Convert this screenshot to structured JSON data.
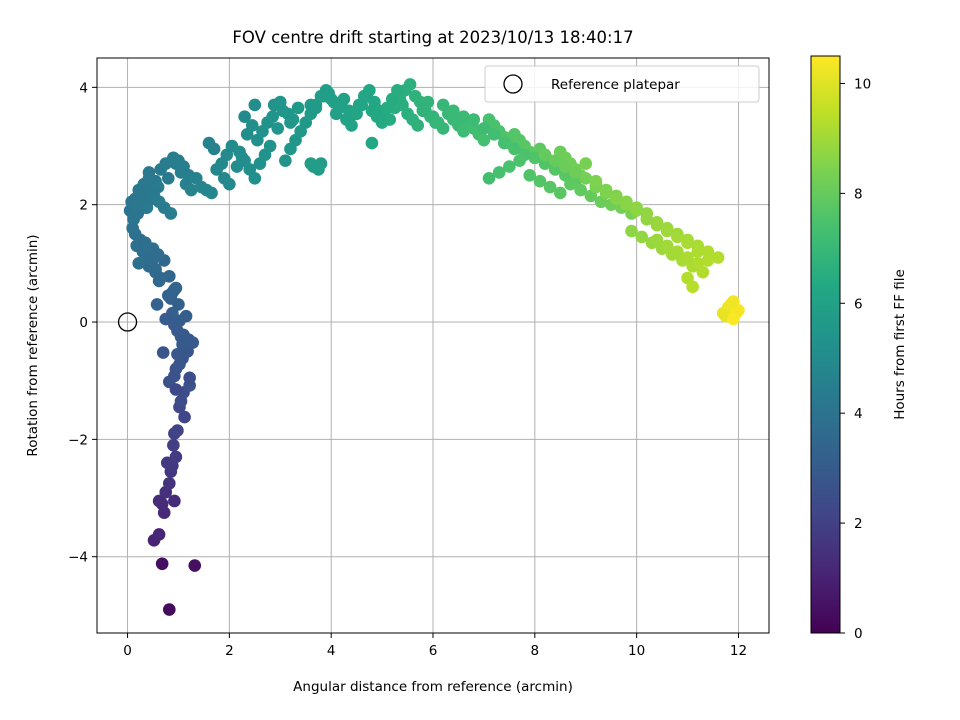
{
  "chart_data": {
    "type": "scatter",
    "title": "FOV centre drift starting at 2023/10/13 18:40:17",
    "xlabel": "Angular distance from reference (arcmin)",
    "ylabel": "Rotation from reference (arcmin)",
    "xlim": [
      -0.6,
      12.6
    ],
    "ylim": [
      -5.3,
      4.5
    ],
    "xticks": [
      "0",
      "2",
      "4",
      "6",
      "8",
      "10",
      "12"
    ],
    "yticks": [
      "−4",
      "−2",
      "0",
      "2",
      "4"
    ],
    "xtick_values": [
      0,
      2,
      4,
      6,
      8,
      10,
      12
    ],
    "ytick_values": [
      -4,
      -2,
      0,
      2,
      4
    ],
    "grid": true,
    "legend": {
      "position": "top-right",
      "label": "Reference platepar"
    },
    "reference_point": {
      "x": 0,
      "y": 0
    },
    "colorbar": {
      "label": "Hours from first FF file",
      "range": [
        0,
        10.5
      ],
      "ticks": [
        "0",
        "2",
        "4",
        "6",
        "8",
        "10"
      ],
      "tick_values": [
        0,
        2,
        4,
        6,
        8,
        10
      ],
      "colormap": "viridis"
    },
    "series": [
      {
        "x": [
          0.82,
          0.68,
          1.32,
          0.52,
          0.62,
          0.72,
          0.68,
          0.62,
          0.92,
          0.75,
          0.82,
          0.85,
          0.88,
          0.78,
          0.95,
          0.9,
          0.92,
          0.98,
          1.12,
          1.02,
          1.05,
          1.1,
          1.22,
          0.82,
          0.92,
          0.95,
          1.02,
          1.08,
          0.98,
          1.18,
          1.15,
          1.08,
          1.28,
          1.2,
          1.1,
          0.98,
          0.92,
          1.02,
          1.15,
          1.22,
          0.95,
          1.05,
          0.88,
          0.75,
          1.0,
          0.85,
          0.58,
          0.7,
          0.92,
          0.88,
          0.8,
          0.62,
          0.55,
          0.95,
          0.72,
          0.82,
          0.48,
          0.42,
          0.38,
          0.32,
          0.25,
          0.18,
          0.3,
          0.45,
          0.55,
          0.65,
          0.22,
          0.15,
          0.35,
          0.5,
          0.6,
          0.1,
          0.12,
          0.05,
          0.08,
          0.25,
          0.4,
          0.15,
          0.3,
          0.48,
          0.2,
          0.35,
          0.55,
          0.42,
          0.65,
          0.75,
          0.9,
          1.0,
          1.1,
          1.2,
          0.8,
          0.6,
          0.5,
          0.38,
          0.28,
          0.18,
          0.12,
          0.22,
          0.32,
          0.42,
          0.52,
          0.62,
          0.72,
          0.85,
          0.95,
          1.05,
          1.15,
          1.25,
          1.35,
          1.45,
          1.55,
          1.65,
          1.75,
          1.85,
          1.95,
          2.05,
          2.2,
          2.3,
          2.4,
          2.5,
          2.6,
          2.7,
          2.8,
          1.7,
          1.6,
          1.9,
          2.0,
          2.15,
          2.25,
          2.35,
          2.45,
          2.55,
          2.65,
          2.75,
          2.85,
          2.95,
          3.05,
          3.15,
          3.25,
          3.35,
          2.88,
          3.0,
          3.1,
          3.2,
          3.3,
          3.4,
          3.5,
          3.6,
          3.7,
          3.8,
          3.9,
          4.0,
          3.6,
          3.7,
          3.8,
          3.65,
          3.75,
          3.85,
          3.95,
          4.05,
          4.15,
          4.25,
          4.35,
          4.45,
          4.55,
          4.65,
          4.75,
          4.85,
          4.95,
          5.05,
          5.15,
          5.25,
          5.35,
          5.45,
          5.55,
          5.65,
          5.75,
          5.85,
          5.95,
          6.05,
          4.1,
          4.2,
          4.3,
          4.4,
          4.5,
          4.6,
          4.7,
          4.8,
          4.9,
          5.0,
          5.1,
          5.2,
          5.3,
          5.4,
          5.5,
          5.6,
          5.7,
          5.8,
          5.9,
          6.0,
          6.1,
          6.2,
          6.3,
          6.4,
          6.5,
          6.6,
          6.7,
          6.8,
          6.9,
          7.0,
          7.1,
          7.2,
          7.3,
          7.4,
          7.5,
          7.6,
          7.7,
          7.8,
          7.9,
          8.0,
          8.1,
          8.2,
          8.3,
          8.4,
          8.5,
          8.6,
          8.7,
          8.8,
          8.9,
          9.0,
          6.2,
          6.4,
          6.6,
          6.8,
          7.0,
          7.2,
          7.4,
          7.6,
          7.8,
          8.0,
          8.2,
          8.4,
          8.6,
          8.8,
          7.1,
          7.3,
          7.5,
          7.7,
          7.9,
          8.1,
          8.3,
          8.5,
          8.7,
          8.9,
          9.1,
          9.3,
          9.5,
          9.7,
          9.9,
          8.2,
          8.4,
          8.6,
          8.8,
          9.0,
          9.2,
          9.4,
          9.6,
          9.8,
          10.0,
          10.2,
          10.4,
          10.6,
          10.8,
          11.0,
          11.2,
          11.4,
          11.6,
          9.2,
          9.4,
          9.6,
          9.8,
          10.0,
          10.2,
          10.4,
          10.6,
          10.8,
          11.0,
          11.2,
          11.4,
          9.9,
          10.1,
          10.3,
          10.5,
          10.7,
          10.9,
          11.1,
          11.3,
          10.4,
          10.6,
          10.8,
          11.0,
          11.2,
          11.7,
          11.8,
          11.9,
          12.0,
          11.75,
          11.85,
          11.95,
          11.1,
          11.0,
          11.9,
          4.8,
          3.6,
          3.7,
          3.2,
          2.5,
          2.3,
          9.2
        ],
        "y": [
          -4.9,
          -4.12,
          -4.15,
          -3.72,
          -3.62,
          -3.25,
          -3.1,
          -3.05,
          -3.05,
          -2.9,
          -2.75,
          -2.55,
          -2.45,
          -2.4,
          -2.3,
          -2.1,
          -1.9,
          -1.85,
          -1.62,
          -1.45,
          -1.35,
          -1.2,
          -1.08,
          -1.02,
          -0.92,
          -0.8,
          -0.72,
          -0.62,
          -0.55,
          -0.5,
          -0.42,
          -0.38,
          -0.35,
          -0.3,
          -0.22,
          -0.15,
          -0.05,
          0.02,
          0.1,
          -0.95,
          -1.15,
          -0.25,
          0.15,
          0.05,
          0.3,
          0.4,
          0.3,
          -0.52,
          0.55,
          0.5,
          0.45,
          0.7,
          0.85,
          0.58,
          1.05,
          0.78,
          1.05,
          0.95,
          1.1,
          1.25,
          1.4,
          1.3,
          1.2,
          1.1,
          0.9,
          0.75,
          1.0,
          1.5,
          1.35,
          1.25,
          1.15,
          1.6,
          1.75,
          1.9,
          2.05,
          2.2,
          2.35,
          2.1,
          2.0,
          2.25,
          1.85,
          1.95,
          2.4,
          2.55,
          2.6,
          2.7,
          2.8,
          2.75,
          2.65,
          2.5,
          2.45,
          2.3,
          2.1,
          1.95,
          2.15,
          2.0,
          1.8,
          2.25,
          2.35,
          2.45,
          2.15,
          2.05,
          1.95,
          1.85,
          2.7,
          2.55,
          2.35,
          2.25,
          2.45,
          2.3,
          2.25,
          2.2,
          2.6,
          2.7,
          2.85,
          3.0,
          2.9,
          2.75,
          2.6,
          2.45,
          2.7,
          2.85,
          3.0,
          2.95,
          3.05,
          2.45,
          2.35,
          2.65,
          2.8,
          3.2,
          3.35,
          3.1,
          3.25,
          3.4,
          3.5,
          3.3,
          3.6,
          3.55,
          3.45,
          3.65,
          3.7,
          3.75,
          2.75,
          2.95,
          3.1,
          3.25,
          3.4,
          3.55,
          3.7,
          3.85,
          3.95,
          3.8,
          3.7,
          3.65,
          2.7,
          2.65,
          2.6,
          3.85,
          3.9,
          3.75,
          3.65,
          3.8,
          3.6,
          3.55,
          3.7,
          3.85,
          3.95,
          3.75,
          3.6,
          3.5,
          3.45,
          3.65,
          3.8,
          3.95,
          4.05,
          3.85,
          3.75,
          3.6,
          3.5,
          3.4,
          3.55,
          3.7,
          3.45,
          3.35,
          3.55,
          3.7,
          3.85,
          3.6,
          3.5,
          3.4,
          3.65,
          3.8,
          3.95,
          3.7,
          3.55,
          3.45,
          3.35,
          3.6,
          3.75,
          3.5,
          3.4,
          3.3,
          3.55,
          3.45,
          3.35,
          3.25,
          3.4,
          3.3,
          3.2,
          3.1,
          3.45,
          3.35,
          3.25,
          3.15,
          3.05,
          3.2,
          3.1,
          3.0,
          2.9,
          2.8,
          2.95,
          2.85,
          2.75,
          2.65,
          2.9,
          2.8,
          2.7,
          2.6,
          2.5,
          2.7,
          3.7,
          3.6,
          3.5,
          3.45,
          3.3,
          3.2,
          3.05,
          2.95,
          2.85,
          2.8,
          2.7,
          2.6,
          2.5,
          2.4,
          2.45,
          2.55,
          2.65,
          2.75,
          2.5,
          2.4,
          2.3,
          2.2,
          2.35,
          2.25,
          2.15,
          2.05,
          2.0,
          1.95,
          1.85,
          2.85,
          2.75,
          2.65,
          2.55,
          2.45,
          2.35,
          2.25,
          2.15,
          2.05,
          1.95,
          1.85,
          1.7,
          1.6,
          1.5,
          1.4,
          1.3,
          1.2,
          1.1,
          2.3,
          2.2,
          2.1,
          2.0,
          1.9,
          1.75,
          1.65,
          1.55,
          1.45,
          1.35,
          1.2,
          1.05,
          1.55,
          1.45,
          1.35,
          1.25,
          1.15,
          1.05,
          0.95,
          0.85,
          1.4,
          1.3,
          1.2,
          1.1,
          1.0,
          0.15,
          0.25,
          0.35,
          0.2,
          0.1,
          0.3,
          0.15,
          0.6,
          0.75,
          0.05,
          3.05,
          2.7,
          2.65,
          3.4,
          3.7,
          3.5,
          2.4
        ],
        "c": [
          0.3,
          0.4,
          0.45,
          1.0,
          1.1,
          1.2,
          1.25,
          1.3,
          1.35,
          1.45,
          1.55,
          1.65,
          1.7,
          1.75,
          1.85,
          1.95,
          2.05,
          2.1,
          2.2,
          2.3,
          2.4,
          2.5,
          2.55,
          2.6,
          2.65,
          2.7,
          2.75,
          2.8,
          2.82,
          2.85,
          2.88,
          2.9,
          2.92,
          2.94,
          2.96,
          2.98,
          3.0,
          3.05,
          3.1,
          2.45,
          2.35,
          2.95,
          3.15,
          3.08,
          3.2,
          3.25,
          3.25,
          2.78,
          3.3,
          3.32,
          3.34,
          3.4,
          3.5,
          3.36,
          3.55,
          3.45,
          3.6,
          3.65,
          3.7,
          3.75,
          3.8,
          3.85,
          3.78,
          3.72,
          3.62,
          3.52,
          3.88,
          3.92,
          3.82,
          3.76,
          3.7,
          3.95,
          4.0,
          4.05,
          4.1,
          4.15,
          4.2,
          4.08,
          4.12,
          4.18,
          4.02,
          4.06,
          4.22,
          4.25,
          4.3,
          4.35,
          4.4,
          4.38,
          4.42,
          4.45,
          4.28,
          4.32,
          4.26,
          4.24,
          4.2,
          4.14,
          4.1,
          4.16,
          4.2,
          4.24,
          4.28,
          4.32,
          4.36,
          4.4,
          4.45,
          4.5,
          4.55,
          4.6,
          4.65,
          4.7,
          4.75,
          4.8,
          4.85,
          4.9,
          4.95,
          5.0,
          5.05,
          5.1,
          5.15,
          5.2,
          5.25,
          5.3,
          5.35,
          4.68,
          4.62,
          4.88,
          4.92,
          5.02,
          5.08,
          5.12,
          5.18,
          5.22,
          5.28,
          5.32,
          5.38,
          5.42,
          5.46,
          5.5,
          5.55,
          5.6,
          5.36,
          5.4,
          5.44,
          5.48,
          5.52,
          5.56,
          5.62,
          5.66,
          5.7,
          5.74,
          5.78,
          5.82,
          5.68,
          5.72,
          5.76,
          5.7,
          5.75,
          5.8,
          5.85,
          5.9,
          5.95,
          6.0,
          6.05,
          6.1,
          6.15,
          6.2,
          6.25,
          6.3,
          6.35,
          6.4,
          6.45,
          6.5,
          6.55,
          6.6,
          6.65,
          6.7,
          6.75,
          6.8,
          6.85,
          6.9,
          5.92,
          5.96,
          6.02,
          6.06,
          6.12,
          6.16,
          6.22,
          6.26,
          6.32,
          6.36,
          6.42,
          6.46,
          6.52,
          6.56,
          6.62,
          6.66,
          6.72,
          6.76,
          6.82,
          6.86,
          6.92,
          6.96,
          7.0,
          7.05,
          7.1,
          7.15,
          7.2,
          7.25,
          7.3,
          7.35,
          7.4,
          7.45,
          7.5,
          7.55,
          7.6,
          7.65,
          7.7,
          7.75,
          7.8,
          7.85,
          7.9,
          7.95,
          8.0,
          8.05,
          8.1,
          8.15,
          8.2,
          8.25,
          8.3,
          8.35,
          6.94,
          7.02,
          7.08,
          7.14,
          7.22,
          7.28,
          7.36,
          7.42,
          7.48,
          7.56,
          7.62,
          7.68,
          7.74,
          7.82,
          7.32,
          7.38,
          7.44,
          7.52,
          7.58,
          7.66,
          7.72,
          7.78,
          7.86,
          7.92,
          8.0,
          8.08,
          8.16,
          8.24,
          8.32,
          7.98,
          8.04,
          8.12,
          8.18,
          8.26,
          8.34,
          8.42,
          8.5,
          8.58,
          8.66,
          8.74,
          8.82,
          8.9,
          8.98,
          9.06,
          9.14,
          9.22,
          9.3,
          8.4,
          8.48,
          8.56,
          8.64,
          8.72,
          8.8,
          8.88,
          8.96,
          9.04,
          9.12,
          9.2,
          9.28,
          8.7,
          8.78,
          8.86,
          8.94,
          9.02,
          9.1,
          9.18,
          9.26,
          8.92,
          9.0,
          9.08,
          9.16,
          9.24,
          10.1,
          10.2,
          10.3,
          10.4,
          10.15,
          10.25,
          10.35,
          9.35,
          9.3,
          10.45,
          6.2,
          5.85,
          5.8,
          5.5,
          5.05,
          5.0,
          8.45
        ]
      }
    ]
  }
}
